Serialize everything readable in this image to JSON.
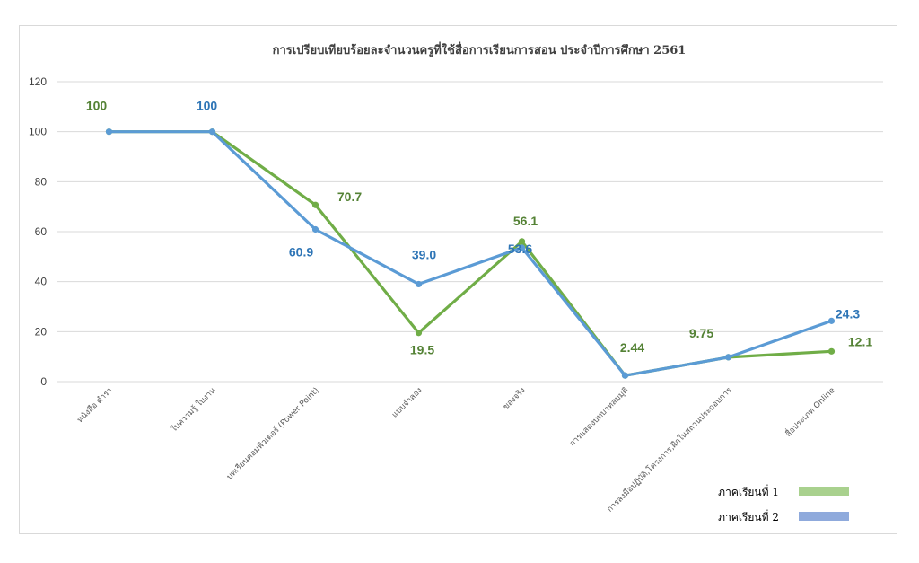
{
  "chart_data": {
    "type": "line",
    "title": "การเปรียบเทียบร้อยละจำนวนครูที่ใช้สื่อการเรียนการสอน ประจำปีการศึกษา 2561",
    "xlabel": "",
    "ylabel": "",
    "categories": [
      "หนังสือ ตำรา",
      "ใบความรู้ ใบงาน",
      "บทเรียนคอมพิวเตอร์ (Power Point)",
      "แบบจำลอง",
      "ของจริง",
      "การแสดงบทบาทสมมุติ",
      "การลงมือปฏิบัติ,โครงการ,ฝึกในสถานประกอบการ",
      "สื่อประเภท Online"
    ],
    "ylim": [
      0,
      120
    ],
    "yticks": [
      0,
      20,
      40,
      60,
      80,
      100,
      120
    ],
    "grid": true,
    "legend_position": "bottom-right",
    "series": [
      {
        "name": "ภาคเรียนที่ 1",
        "color": "#70ad47",
        "legend_color": "#a9d18e",
        "values": [
          100,
          100,
          70.7,
          19.5,
          56.1,
          2.44,
          9.75,
          12.1
        ],
        "labels": [
          "100",
          "",
          "70.7",
          "19.5",
          "56.1",
          "2.44",
          "9.75",
          "12.1"
        ]
      },
      {
        "name": "ภาคเรียนที่ 2",
        "color": "#5b9bd5",
        "legend_color": "#8faadc",
        "values": [
          100,
          100,
          60.9,
          39.0,
          53.6,
          2.44,
          9.75,
          24.3
        ],
        "labels": [
          "",
          "100",
          "60.9",
          "39.0",
          "53.6",
          "",
          "",
          "24.3"
        ]
      }
    ],
    "label_colors": [
      "#548235",
      "#2e75b6"
    ]
  }
}
